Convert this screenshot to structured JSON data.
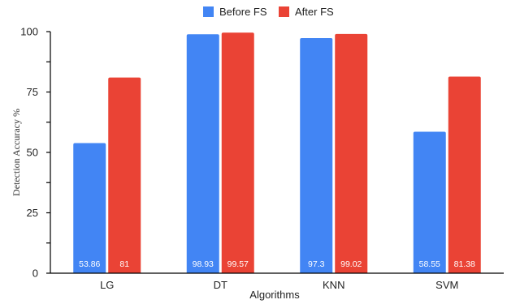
{
  "chart_data": {
    "type": "bar",
    "categories": [
      "LG",
      "DT",
      "KNN",
      "SVM"
    ],
    "series": [
      {
        "name": "Before FS",
        "color": "#4285f4",
        "values": [
          53.86,
          98.93,
          97.3,
          58.55
        ],
        "labels": [
          "53.86",
          "98.93",
          "97.3",
          "58.55"
        ]
      },
      {
        "name": "After FS",
        "color": "#ea4335",
        "values": [
          81,
          99.57,
          99.02,
          81.38
        ],
        "labels": [
          "81",
          "99.57",
          "99.02",
          "81.38"
        ]
      }
    ],
    "xlabel": "Algorithms",
    "ylabel": "Detection Accuracy %",
    "ylim": [
      0,
      100
    ],
    "yticks": [
      0,
      25,
      50,
      75,
      100
    ],
    "legend_position": "top-center",
    "grid": false
  }
}
